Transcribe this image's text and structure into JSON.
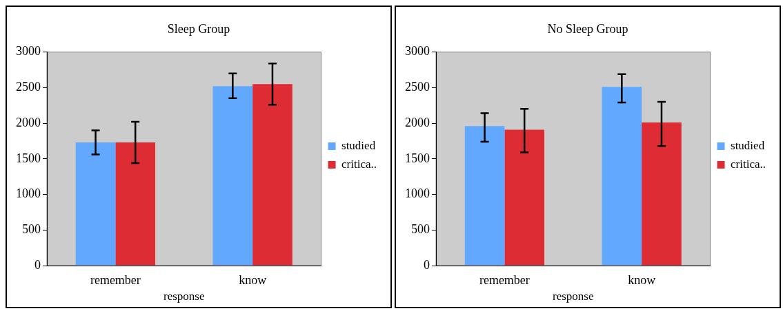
{
  "chart_data": [
    {
      "type": "bar",
      "title": "Sleep Group",
      "xlabel": "response",
      "categories": [
        "remember",
        "know"
      ],
      "series": [
        {
          "name": "studied",
          "color": "#62a8ff",
          "values": [
            1730,
            2520
          ],
          "errors": [
            [
              1560,
              1900
            ],
            [
              2350,
              2700
            ]
          ]
        },
        {
          "name": "critica..",
          "color": "#dd2c33",
          "values": [
            1730,
            2550
          ],
          "errors": [
            [
              1440,
              2020
            ],
            [
              2260,
              2840
            ]
          ]
        }
      ],
      "ylim": [
        0,
        3000
      ],
      "yticks": [
        0,
        500,
        1000,
        1500,
        2000,
        2500,
        3000
      ],
      "grid": false,
      "legend": "right"
    },
    {
      "type": "bar",
      "title": "No Sleep Group",
      "xlabel": "response",
      "categories": [
        "remember",
        "know"
      ],
      "series": [
        {
          "name": "studied",
          "color": "#62a8ff",
          "values": [
            1960,
            2510
          ],
          "errors": [
            [
              1740,
              2140
            ],
            [
              2290,
              2690
            ]
          ]
        },
        {
          "name": "critica..",
          "color": "#dd2c33",
          "values": [
            1910,
            2010
          ],
          "errors": [
            [
              1590,
              2200
            ],
            [
              1680,
              2300
            ]
          ]
        }
      ],
      "ylim": [
        0,
        3000
      ],
      "yticks": [
        0,
        500,
        1000,
        1500,
        2000,
        2500,
        3000
      ],
      "grid": false,
      "legend": "right"
    }
  ]
}
